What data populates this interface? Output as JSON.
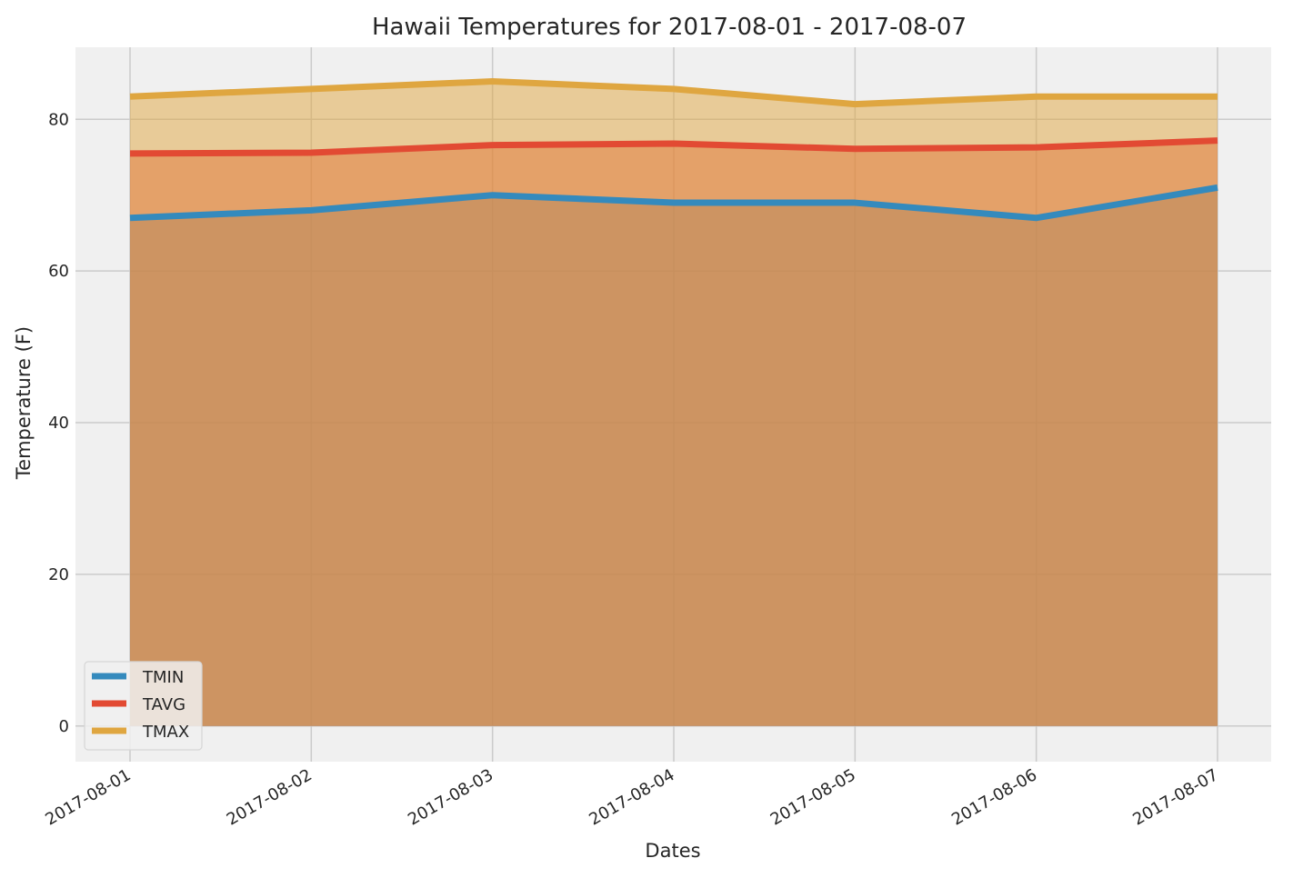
{
  "chart_data": {
    "type": "area",
    "title": "Hawaii Temperatures for 2017-08-01 - 2017-08-07",
    "xlabel": "Dates",
    "ylabel": "Temperature (F)",
    "x": [
      "2017-08-01",
      "2017-08-02",
      "2017-08-03",
      "2017-08-04",
      "2017-08-05",
      "2017-08-06",
      "2017-08-07"
    ],
    "ylim": [
      -4.7,
      89.5
    ],
    "yticks": [
      0,
      20,
      40,
      60,
      80
    ],
    "grid": true,
    "stacked": false,
    "legend_position": "lower-left",
    "series": [
      {
        "name": "TMIN",
        "color": "#348ABD",
        "values": [
          67.0,
          68.0,
          70.0,
          69.0,
          69.0,
          67.0,
          71.0
        ]
      },
      {
        "name": "TAVG",
        "color": "#E24A33",
        "values": [
          75.5,
          75.6,
          76.6,
          76.8,
          76.1,
          76.3,
          77.2
        ]
      },
      {
        "name": "TMAX",
        "color": "#DFA640",
        "values": [
          83.0,
          84.0,
          85.0,
          84.0,
          82.0,
          83.0,
          83.0
        ]
      }
    ],
    "background_color": "#F0F0F0",
    "grid_color": "#CBCBCB"
  }
}
